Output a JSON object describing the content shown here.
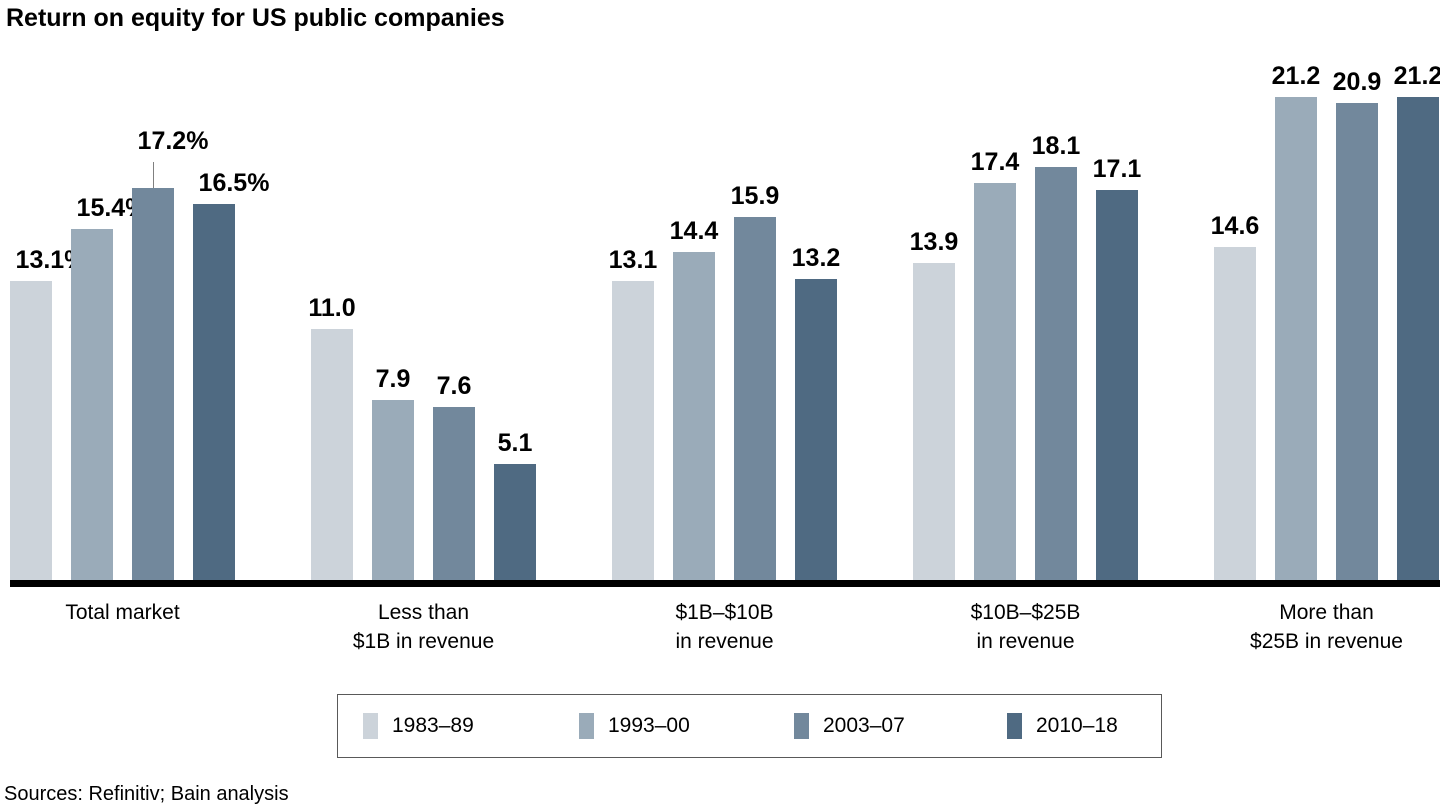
{
  "chart_data": {
    "type": "bar",
    "title": "Return on equity for US public companies",
    "unit": "percent",
    "categories": [
      "Total market",
      "Less than\n$1B in revenue",
      "$1B–$10B\nin revenue",
      "$10B–$25B\nin revenue",
      "More than\n$25B in revenue"
    ],
    "series": [
      {
        "name": "1983–89",
        "color": "#ccd3da",
        "values": [
          13.1,
          11.0,
          13.1,
          13.9,
          14.6
        ],
        "value_labels": [
          "13.1%",
          "11.0",
          "13.1",
          "13.9",
          "14.6"
        ]
      },
      {
        "name": "1993–00",
        "color": "#9aabb9",
        "values": [
          15.4,
          7.9,
          14.4,
          17.4,
          21.2
        ],
        "value_labels": [
          "15.4%",
          "7.9",
          "14.4",
          "17.4",
          "21.2"
        ]
      },
      {
        "name": "2003–07",
        "color": "#72889c",
        "values": [
          17.2,
          7.6,
          15.9,
          18.1,
          20.9
        ],
        "value_labels": [
          "17.2%",
          "7.6",
          "15.9",
          "18.1",
          "20.9"
        ]
      },
      {
        "name": "2010–18",
        "color": "#4f6a82",
        "values": [
          16.5,
          5.1,
          13.2,
          17.1,
          21.2
        ],
        "value_labels": [
          "16.5%",
          "5.1",
          "13.2",
          "17.1",
          "21.2"
        ]
      }
    ],
    "ylim": [
      0,
      22
    ],
    "grid": false,
    "legend_position": "bottom",
    "callout": {
      "category_index": 0,
      "series_index": 2
    }
  },
  "footer": {
    "sources": "Sources: Refinitiv; Bain analysis"
  }
}
